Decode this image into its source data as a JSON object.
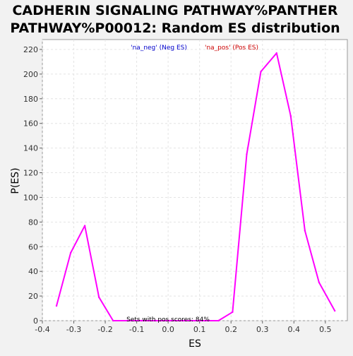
{
  "chart_data": {
    "type": "line",
    "title_line1": "CADHERIN SIGNALING PATHWAY%PANTHER",
    "title_line2": "PATHWAY%P00012: Random ES distribution",
    "xlabel": "ES",
    "ylabel": "P(ES)",
    "xlim": [
      -0.4,
      0.57
    ],
    "ylim": [
      0,
      228
    ],
    "x_ticks": [
      -0.4,
      -0.3,
      -0.2,
      -0.1,
      0.0,
      0.1,
      0.2,
      0.3,
      0.4,
      0.5
    ],
    "x_tick_labels": [
      "-0.4",
      "-0.3",
      "-0.2",
      "-0.1",
      "0.0",
      "0.1",
      "0.2",
      "0.3",
      "0.4",
      "0.5"
    ],
    "y_ticks": [
      0,
      20,
      40,
      60,
      80,
      100,
      120,
      140,
      160,
      180,
      200,
      220
    ],
    "y_tick_labels": [
      "0",
      "20",
      "40",
      "60",
      "80",
      "100",
      "120",
      "140",
      "160",
      "180",
      "200",
      "220"
    ],
    "grid": true,
    "legend": [
      {
        "label": "'na_neg' (Neg ES)",
        "color": "#0000cc"
      },
      {
        "label": "'na_pos' (Pos ES)",
        "color": "#cc0000"
      }
    ],
    "annotation": "Sets with pos scores: 84%",
    "series": [
      {
        "color": "#ff00ff",
        "x": [
          -0.355,
          -0.31,
          -0.265,
          -0.22,
          -0.175,
          -0.13,
          -0.085,
          -0.04,
          0.005,
          0.05,
          0.095,
          0.16,
          0.205,
          0.25,
          0.295,
          0.345,
          0.39,
          0.435,
          0.48,
          0.53
        ],
        "y": [
          12,
          55,
          77,
          19,
          0,
          0,
          0,
          0,
          0,
          0,
          0,
          0,
          7,
          135,
          202,
          217,
          166,
          73,
          31,
          8
        ]
      }
    ]
  },
  "colors": {
    "plot_bg": "#ffffff",
    "page_bg": "#f2f2f2",
    "grid": "#e4e4e4",
    "axis": "#999999",
    "text": "#000000"
  }
}
